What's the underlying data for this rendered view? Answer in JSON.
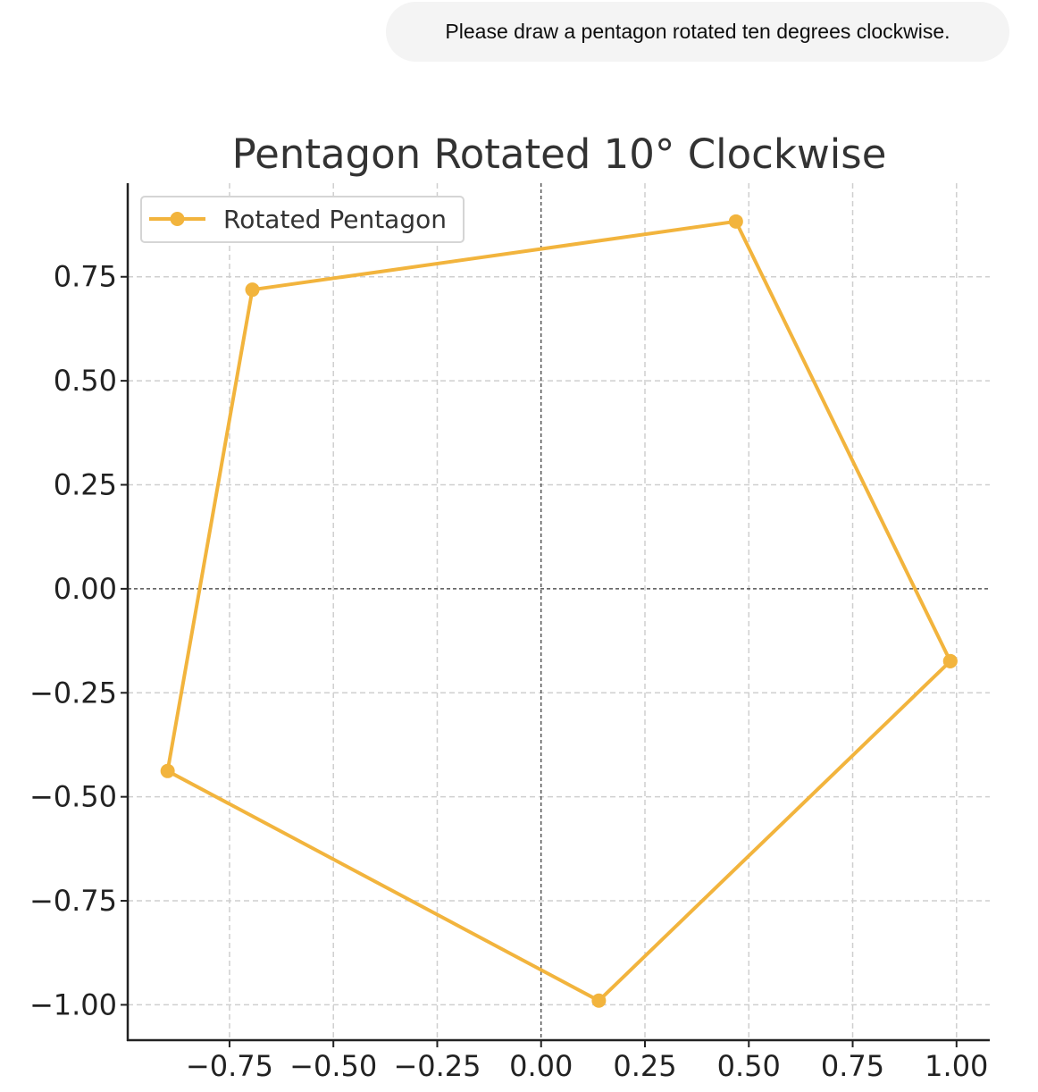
{
  "message": {
    "text": "Please draw a pentagon rotated ten degrees clockwise."
  },
  "chart_data": {
    "type": "line",
    "title": "Pentagon Rotated 10° Clockwise",
    "xlabel": "",
    "ylabel": "",
    "xlim": [
      -0.995,
      1.08
    ],
    "ylim": [
      -1.085,
      0.975
    ],
    "x_ticks": [
      -0.75,
      -0.5,
      -0.25,
      0.0,
      0.25,
      0.5,
      0.75,
      1.0
    ],
    "x_tick_labels": [
      "−0.75",
      "−0.50",
      "−0.25",
      "0.00",
      "0.25",
      "0.50",
      "0.75",
      "1.00"
    ],
    "y_ticks": [
      0.75,
      0.5,
      0.25,
      0.0,
      -0.25,
      -0.5,
      -0.75,
      -1.0
    ],
    "y_tick_labels": [
      "0.75",
      "0.50",
      "0.25",
      "0.00",
      "−0.25",
      "−0.50",
      "−0.75",
      "−1.00"
    ],
    "grid": true,
    "grid_style": "dashed",
    "zero_lines": true,
    "legend_position": "top-left",
    "series": [
      {
        "name": "Rotated Pentagon",
        "color": "#f2b43d",
        "marker": "circle",
        "x": [
          0.985,
          0.469,
          -0.695,
          -0.899,
          0.139,
          0.985
        ],
        "y": [
          -0.174,
          0.883,
          0.719,
          -0.438,
          -0.99,
          -0.174
        ]
      }
    ]
  }
}
